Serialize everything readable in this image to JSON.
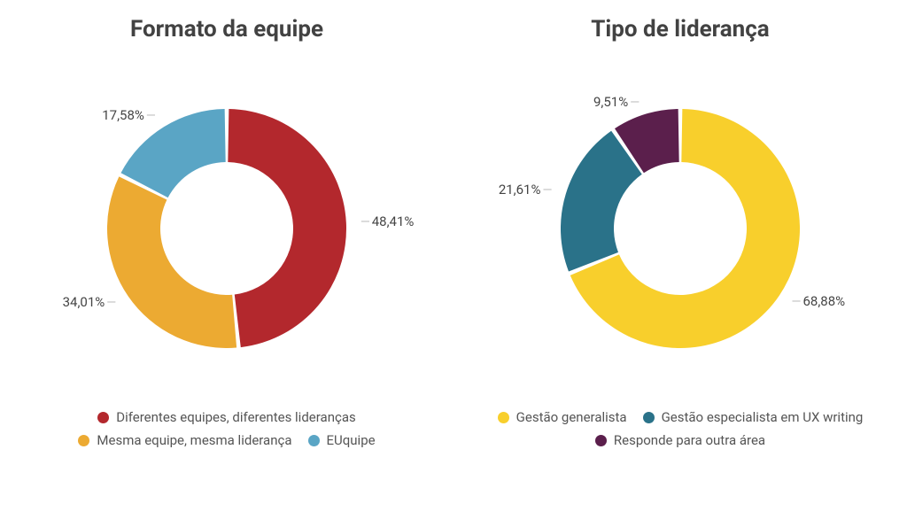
{
  "background_color": "#ffffff",
  "title_color": "#424242",
  "title_fontsize": 26,
  "title_fontweight": 700,
  "label_color": "#444444",
  "label_fontsize": 15,
  "legend_fontsize": 15,
  "legend_color": "#555555",
  "swatch_size": 13,
  "charts": [
    {
      "title": "Formato da equipe",
      "type": "donut",
      "outer_radius": 135,
      "inner_radius": 75,
      "gap_deg": 2,
      "start_angle": -90,
      "slices": [
        {
          "label": "Diferentes equipes, diferentes lideranças",
          "value": 48.41,
          "display": "48,41%",
          "color": "#b3282d"
        },
        {
          "label": "Mesma equipe, mesma liderança",
          "value": 34.01,
          "display": "34,01%",
          "color": "#ecaa32"
        },
        {
          "label": "EUquipe",
          "value": 17.58,
          "display": "17,58%",
          "color": "#5aa5c5"
        }
      ]
    },
    {
      "title": "Tipo de liderança",
      "type": "donut",
      "outer_radius": 135,
      "inner_radius": 75,
      "gap_deg": 2,
      "start_angle": -90,
      "slices": [
        {
          "label": "Gestão generalista",
          "value": 68.88,
          "display": "68,88%",
          "color": "#f8cf2c"
        },
        {
          "label": "Gestão especialista em UX writing",
          "value": 21.61,
          "display": "21,61%",
          "color": "#2a7289"
        },
        {
          "label": "Responde para outra área",
          "value": 9.51,
          "display": "9,51%",
          "color": "#5b1f4c"
        }
      ]
    }
  ]
}
